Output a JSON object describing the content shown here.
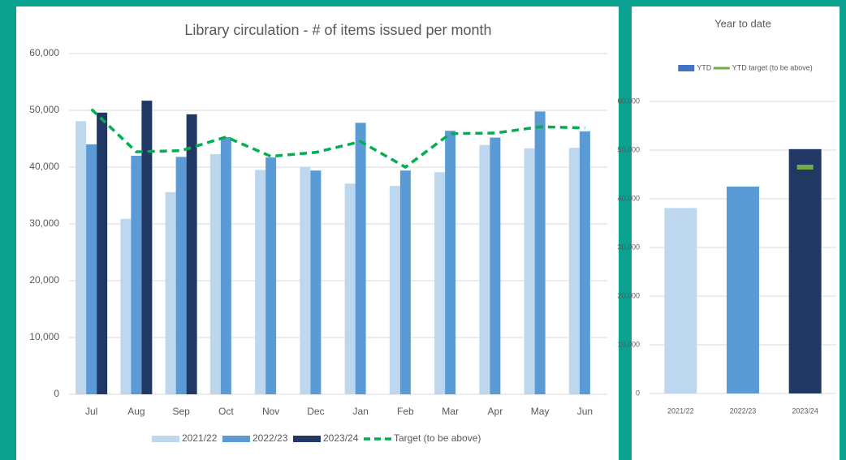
{
  "chart_data": [
    {
      "type": "bar",
      "title": "Library circulation - # of items issued per month",
      "categories": [
        "Jul",
        "Aug",
        "Sep",
        "Oct",
        "Nov",
        "Dec",
        "Jan",
        "Feb",
        "Mar",
        "Apr",
        "May",
        "Jun"
      ],
      "series": [
        {
          "name": "2021/22",
          "color": "#bdd7ee",
          "values": [
            48100,
            30900,
            35600,
            42300,
            39500,
            40000,
            37100,
            36700,
            39100,
            43900,
            43300,
            43400
          ]
        },
        {
          "name": "2022/23",
          "color": "#5b9bd5",
          "values": [
            44000,
            42000,
            41800,
            45300,
            41700,
            39400,
            47800,
            39400,
            46400,
            45200,
            49800,
            46300
          ]
        },
        {
          "name": "2023/24",
          "color": "#203864",
          "values": [
            49600,
            51700,
            49300,
            null,
            null,
            null,
            null,
            null,
            null,
            null,
            null,
            null
          ]
        },
        {
          "name": "Target (to be above)",
          "type": "line",
          "color": "#00b050",
          "values": [
            50200,
            42700,
            42900,
            45300,
            41900,
            42600,
            44500,
            40000,
            45900,
            46000,
            47100,
            46900
          ]
        }
      ],
      "ylim": [
        0,
        60000
      ],
      "yticks": [
        0,
        {
          "value": 10000,
          "label": "10,000"
        },
        {
          "value": 20000,
          "label": "20,000"
        },
        {
          "value": 30000,
          "label": "30,000"
        },
        {
          "value": 40000,
          "label": "40,000"
        },
        {
          "value": 50000,
          "label": "50,000"
        },
        {
          "value": 60000,
          "label": "60,000"
        }
      ],
      "grid": true,
      "legend": "bottom"
    },
    {
      "type": "bar",
      "title": "Year to date",
      "categories": [
        "2021/22",
        "2022/23",
        "2023/24"
      ],
      "series": [
        {
          "name": "YTD",
          "color": [
            "#bdd7ee",
            "#5b9bd5",
            "#203864"
          ],
          "values": [
            38100,
            42500,
            50200
          ]
        },
        {
          "name": "YTD target (to be above)",
          "type": "marker",
          "color": "#70ad47",
          "values": [
            null,
            null,
            46500
          ]
        }
      ],
      "ylim": [
        0,
        60000
      ],
      "yticks": [
        0,
        {
          "value": 10000,
          "label": "10,000"
        },
        {
          "value": 20000,
          "label": "20,000"
        },
        {
          "value": 30000,
          "label": "30,000"
        },
        {
          "value": 40000,
          "label": "40,000"
        },
        {
          "value": 50000,
          "label": "50,000"
        },
        {
          "value": 60000,
          "label": "60,000"
        }
      ],
      "grid": true,
      "legend": "top"
    }
  ]
}
